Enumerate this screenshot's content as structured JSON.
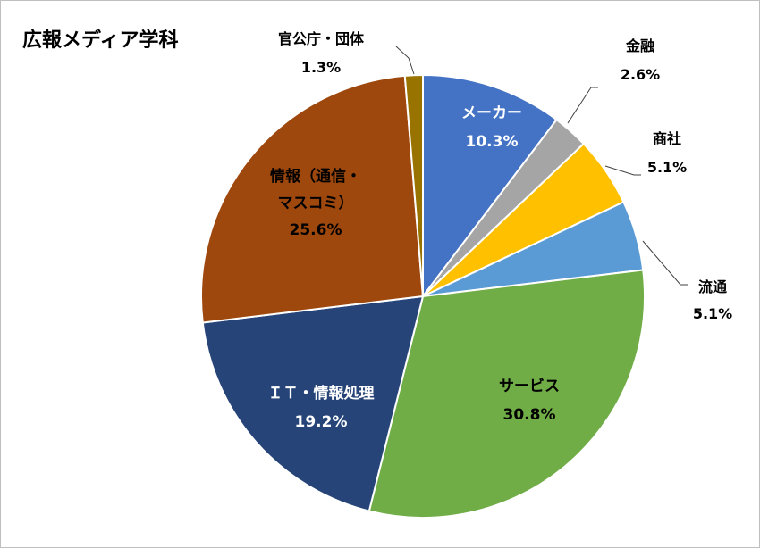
{
  "chart_data": {
    "type": "pie",
    "title": "広報メディア学科",
    "slices": [
      {
        "key": "maker",
        "label": "メーカー",
        "value": 10.3,
        "value_text": "10.3%",
        "color": "#4472C4"
      },
      {
        "key": "finance",
        "label": "金融",
        "value": 2.6,
        "value_text": "2.6%",
        "color": "#A5A5A5"
      },
      {
        "key": "trading",
        "label": "商社",
        "value": 5.1,
        "value_text": "5.1%",
        "color": "#FFC000"
      },
      {
        "key": "retail",
        "label": "流通",
        "value": 5.1,
        "value_text": "5.1%",
        "color": "#5B9BD5"
      },
      {
        "key": "service",
        "label": "サービス",
        "value": 30.8,
        "value_text": "30.8%",
        "color": "#70AD47"
      },
      {
        "key": "it",
        "label": "ＩＴ・情報処理",
        "value": 19.2,
        "value_text": "19.2%",
        "color": "#264478"
      },
      {
        "key": "media",
        "label": [
          "情報（通信・",
          "マスコミ）"
        ],
        "value": 25.6,
        "value_text": "25.6%",
        "color": "#9E480E"
      },
      {
        "key": "gov",
        "label": "官公庁・団体",
        "value": 1.3,
        "value_text": "1.3%",
        "color": "#997300"
      }
    ],
    "legend": "none",
    "start_angle": "12 o'clock",
    "direction": "clockwise"
  }
}
